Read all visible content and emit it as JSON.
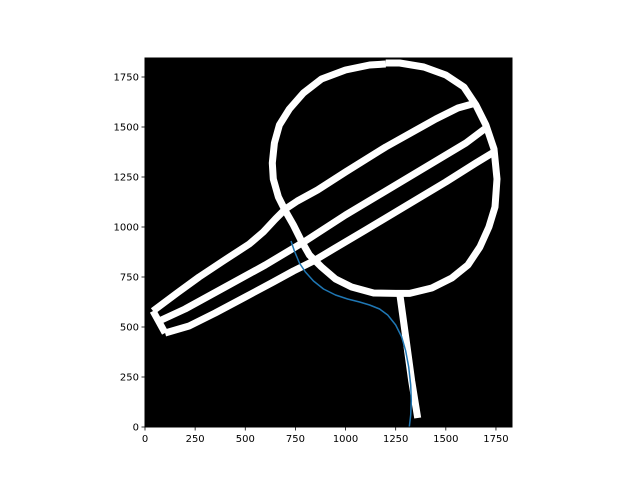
{
  "chart_data": {
    "type": "line",
    "title": "",
    "xlabel": "",
    "ylabel": "",
    "xlim": [
      0,
      1830
    ],
    "ylim": [
      0,
      1845
    ],
    "x_ticks": [
      0,
      250,
      500,
      750,
      1000,
      1250,
      1500,
      1750
    ],
    "y_ticks": [
      0,
      250,
      500,
      750,
      1000,
      1250,
      1500,
      1750
    ],
    "x_tick_labels": [
      "0",
      "250",
      "500",
      "750",
      "1000",
      "1250",
      "1500",
      "1750"
    ],
    "y_tick_labels": [
      "0",
      "250",
      "500",
      "750",
      "1000",
      "1250",
      "1500",
      "1750"
    ],
    "background_color": "#000000",
    "grid": false,
    "map_lines": [
      {
        "name": "outer-ring",
        "closed": false,
        "color": "#ffffff",
        "points": [
          [
            1200,
            1815
          ],
          [
            1120,
            1810
          ],
          [
            1000,
            1785
          ],
          [
            880,
            1740
          ],
          [
            790,
            1670
          ],
          [
            720,
            1590
          ],
          [
            670,
            1510
          ],
          [
            645,
            1420
          ],
          [
            635,
            1320
          ],
          [
            640,
            1240
          ],
          [
            665,
            1150
          ],
          [
            700,
            1080
          ],
          [
            740,
            1010
          ],
          [
            780,
            930
          ],
          [
            820,
            860
          ],
          [
            880,
            800
          ],
          [
            950,
            740
          ],
          [
            1030,
            700
          ],
          [
            1140,
            670
          ],
          [
            1250,
            668
          ],
          [
            1320,
            668
          ],
          [
            1430,
            695
          ],
          [
            1530,
            745
          ],
          [
            1610,
            810
          ],
          [
            1670,
            900
          ],
          [
            1715,
            1000
          ],
          [
            1745,
            1100
          ],
          [
            1755,
            1240
          ],
          [
            1740,
            1390
          ],
          [
            1700,
            1510
          ],
          [
            1650,
            1610
          ],
          [
            1590,
            1700
          ],
          [
            1500,
            1760
          ],
          [
            1390,
            1800
          ],
          [
            1270,
            1820
          ],
          [
            1200,
            1820
          ]
        ]
      },
      {
        "name": "lane-upper",
        "closed": false,
        "color": "#ffffff",
        "points": [
          [
            40,
            580
          ],
          [
            160,
            670
          ],
          [
            270,
            750
          ],
          [
            390,
            830
          ],
          [
            520,
            915
          ],
          [
            590,
            975
          ],
          [
            650,
            1040
          ],
          [
            700,
            1090
          ],
          [
            760,
            1130
          ],
          [
            860,
            1185
          ],
          [
            1000,
            1275
          ],
          [
            1200,
            1400
          ],
          [
            1450,
            1540
          ],
          [
            1560,
            1595
          ],
          [
            1650,
            1620
          ]
        ]
      },
      {
        "name": "lane-middle",
        "closed": false,
        "color": "#ffffff",
        "points": [
          [
            60,
            525
          ],
          [
            200,
            590
          ],
          [
            400,
            700
          ],
          [
            600,
            810
          ],
          [
            800,
            930
          ],
          [
            1000,
            1060
          ],
          [
            1200,
            1180
          ],
          [
            1400,
            1300
          ],
          [
            1600,
            1420
          ],
          [
            1700,
            1495
          ]
        ]
      },
      {
        "name": "lane-lower",
        "closed": false,
        "color": "#ffffff",
        "points": [
          [
            100,
            470
          ],
          [
            220,
            505
          ],
          [
            350,
            570
          ],
          [
            500,
            650
          ],
          [
            640,
            725
          ],
          [
            740,
            780
          ],
          [
            840,
            830
          ],
          [
            940,
            890
          ],
          [
            1100,
            985
          ],
          [
            1300,
            1105
          ],
          [
            1500,
            1225
          ],
          [
            1650,
            1320
          ],
          [
            1740,
            1375
          ]
        ]
      },
      {
        "name": "lane-end-cap",
        "closed": false,
        "color": "#ffffff",
        "points": [
          [
            40,
            580
          ],
          [
            100,
            470
          ]
        ]
      },
      {
        "name": "exit-road",
        "closed": false,
        "color": "#ffffff",
        "points": [
          [
            1270,
            668
          ],
          [
            1300,
            450
          ],
          [
            1330,
            230
          ],
          [
            1360,
            45
          ]
        ]
      }
    ],
    "series": [
      {
        "color": "#1f77b4",
        "x": [
          728,
          745,
          770,
          800,
          840,
          890,
          950,
          1010,
          1070,
          1120,
          1170,
          1210,
          1250,
          1280,
          1300,
          1315,
          1325,
          1328,
          1325,
          1318
        ],
        "y": [
          930,
          880,
          820,
          775,
          730,
          690,
          660,
          640,
          625,
          610,
          590,
          560,
          510,
          450,
          380,
          300,
          210,
          130,
          60,
          0
        ]
      }
    ]
  }
}
